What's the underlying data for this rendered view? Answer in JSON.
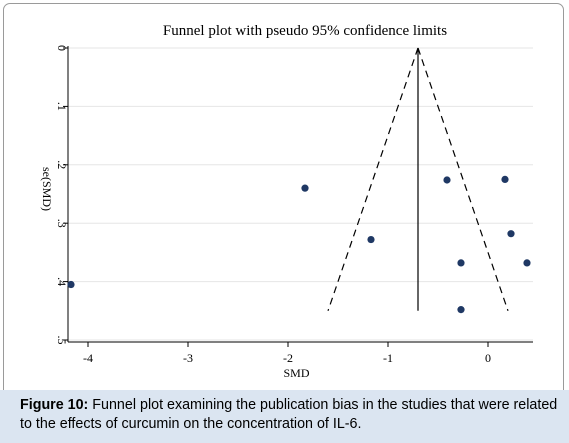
{
  "chart_data": {
    "type": "scatter",
    "title": "Funnel plot with pseudo 95% confidence limits",
    "xlabel": "SMD",
    "ylabel": "se(SMD)",
    "xlim": [
      -4.2,
      0.45
    ],
    "ylim": [
      0,
      0.5
    ],
    "y_reversed": true,
    "x_ticks": [
      "-4",
      "-3",
      "-2",
      "-1",
      "0"
    ],
    "y_ticks": [
      "0",
      ".1",
      ".2",
      ".3",
      ".4",
      ".5"
    ],
    "grid": "horizontal",
    "points": [
      {
        "x": -4.17,
        "y": 0.405
      },
      {
        "x": -1.83,
        "y": 0.24
      },
      {
        "x": -1.17,
        "y": 0.328
      },
      {
        "x": -0.41,
        "y": 0.226
      },
      {
        "x": 0.17,
        "y": 0.225
      },
      {
        "x": 0.23,
        "y": 0.318
      },
      {
        "x": -0.27,
        "y": 0.368
      },
      {
        "x": 0.39,
        "y": 0.368
      },
      {
        "x": -0.27,
        "y": 0.448
      }
    ],
    "summary_effect": -0.7,
    "funnel": {
      "apex": [
        -0.7,
        0
      ],
      "bottom_left": [
        -1.6,
        0.45
      ],
      "bottom_right": [
        0.2,
        0.45
      ]
    },
    "colors": {
      "points": "#1f3864",
      "lines": "#000000",
      "grid": "#e6e6e6"
    }
  },
  "caption": {
    "label": "Figure 10:",
    "text": " Funnel plot examining the publication bias in the studies that were related to the effects of curcumin on the concentration of IL-6."
  }
}
